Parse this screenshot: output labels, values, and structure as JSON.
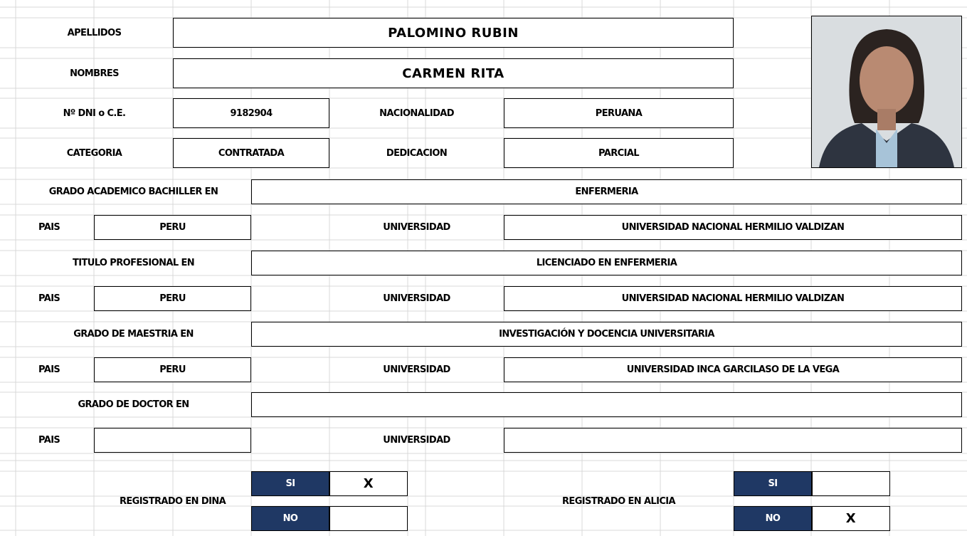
{
  "personal": {
    "apellidos": {
      "label": "APELLIDOS",
      "value": "PALOMINO RUBIN"
    },
    "nombres": {
      "label": "NOMBRES",
      "value": "CARMEN RITA"
    },
    "dni": {
      "label": "Nº DNI o C.E.",
      "value": "9182904"
    },
    "nacionalidad": {
      "label": "NACIONALIDAD",
      "value": "PERUANA"
    },
    "categoria": {
      "label": "CATEGORIA",
      "value": "CONTRATADA"
    },
    "dedicacion": {
      "label": "DEDICACION",
      "value": "PARCIAL"
    }
  },
  "grados": [
    {
      "label": "GRADO ACADEMICO BACHILLER EN",
      "value": "ENFERMERIA",
      "pais_label": "PAIS",
      "pais": "PERU",
      "universidad_label": "UNIVERSIDAD",
      "universidad": "UNIVERSIDAD NACIONAL HERMILIO VALDIZAN"
    },
    {
      "label": "TITULO PROFESIONAL EN",
      "value": "LICENCIADO EN ENFERMERIA",
      "pais_label": "PAIS",
      "pais": "PERU",
      "universidad_label": "UNIVERSIDAD",
      "universidad": "UNIVERSIDAD NACIONAL HERMILIO VALDIZAN"
    },
    {
      "label": "GRADO DE MAESTRIA EN",
      "value": "INVESTIGACIÓN Y DOCENCIA UNIVERSITARIA",
      "pais_label": "PAIS",
      "pais": "PERU",
      "universidad_label": "UNIVERSIDAD",
      "universidad": "UNIVERSIDAD INCA GARCILASO DE LA VEGA"
    },
    {
      "label": "GRADO DE DOCTOR EN",
      "pais_label": "PAIS",
      "universidad_label": "UNIVERSIDAD"
    }
  ],
  "registro": [
    {
      "label": "REGISTRADO EN DINA",
      "options": [
        {
          "label": "SI",
          "value": "X"
        },
        {
          "label": "NO"
        }
      ]
    },
    {
      "label": "REGISTRADO EN ALICIA",
      "options": [
        {
          "label": "SI"
        },
        {
          "label": "NO",
          "value": "X"
        }
      ]
    }
  ]
}
